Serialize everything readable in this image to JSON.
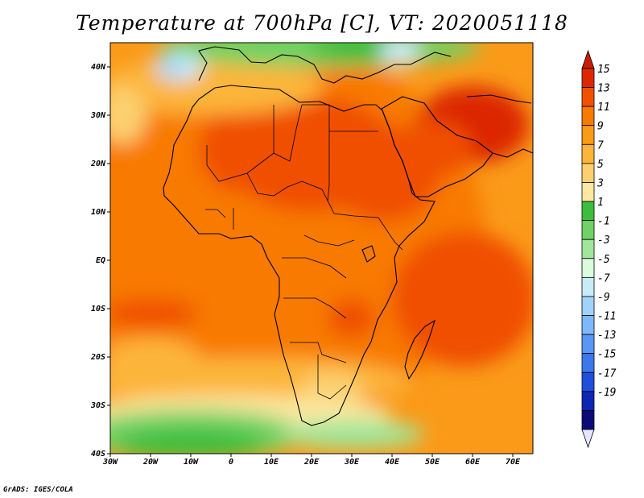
{
  "title": "Temperature at 700hPa [C], VT: 2020051118",
  "credit": "GrADS: IGES/COLA",
  "map": {
    "lon_range": [
      -30,
      75
    ],
    "lat_range": [
      -40,
      45
    ],
    "lon_ticks": [
      {
        "lon": -30,
        "label": "30W"
      },
      {
        "lon": -20,
        "label": "20W"
      },
      {
        "lon": -10,
        "label": "10W"
      },
      {
        "lon": 0,
        "label": "0"
      },
      {
        "lon": 10,
        "label": "10E"
      },
      {
        "lon": 20,
        "label": "20E"
      },
      {
        "lon": 30,
        "label": "30E"
      },
      {
        "lon": 40,
        "label": "40E"
      },
      {
        "lon": 50,
        "label": "50E"
      },
      {
        "lon": 60,
        "label": "60E"
      },
      {
        "lon": 70,
        "label": "70E"
      }
    ],
    "lat_ticks": [
      {
        "lat": 40,
        "label": "40N"
      },
      {
        "lat": 30,
        "label": "30N"
      },
      {
        "lat": 20,
        "label": "20N"
      },
      {
        "lat": 10,
        "label": "10N"
      },
      {
        "lat": 0,
        "label": "EQ"
      },
      {
        "lat": -10,
        "label": "10S"
      },
      {
        "lat": -20,
        "label": "20S"
      },
      {
        "lat": -30,
        "label": "30S"
      },
      {
        "lat": -40,
        "label": "40S"
      }
    ]
  },
  "colorbar": {
    "labels": [
      "15",
      "13",
      "11",
      "9",
      "7",
      "5",
      "3",
      "1",
      "-1",
      "-3",
      "-5",
      "-7",
      "-9",
      "-11",
      "-13",
      "-15",
      "-17",
      "-19"
    ],
    "top_arrow_color": "#c81e00",
    "bottom_arrow_color": "#e6e6ff",
    "colors": [
      "#dc2800",
      "#f05000",
      "#f87a00",
      "#fa9a18",
      "#fcb53a",
      "#fcd070",
      "#fce8a0",
      "#3cbe3c",
      "#6ed264",
      "#a0e69b",
      "#dcfadc",
      "#c8ebf8",
      "#a0d2fa",
      "#7db9fa",
      "#5a96f5",
      "#3c78eb",
      "#1e50dc",
      "#0a28b4",
      "#0a0a78"
    ]
  },
  "temperature_zones": [
    {
      "lon": 8,
      "lat": 5,
      "rx": 55,
      "ry": 40,
      "color": "#f87a00"
    },
    {
      "lon": 20,
      "lat": 22,
      "rx": 22,
      "ry": 12,
      "color": "#f05000"
    },
    {
      "lon": 2,
      "lat": 23,
      "rx": 10,
      "ry": 9,
      "color": "#f05000"
    },
    {
      "lon": 38,
      "lat": 18,
      "rx": 14,
      "ry": 10,
      "color": "#f05000"
    },
    {
      "lon": 60,
      "lat": 28,
      "rx": 14,
      "ry": 8,
      "color": "#dc2800"
    },
    {
      "lon": 50,
      "lat": 23,
      "rx": 10,
      "ry": 6,
      "color": "#f05000"
    },
    {
      "lon": 58,
      "lat": -8,
      "rx": 18,
      "ry": 14,
      "color": "#f05000"
    },
    {
      "lon": 30,
      "lat": -12,
      "rx": 6,
      "ry": 4,
      "color": "#f05000"
    },
    {
      "lon": -20,
      "lat": -11,
      "rx": 12,
      "ry": 3,
      "color": "#f05000"
    },
    {
      "lon": 5,
      "lat": -25,
      "rx": 40,
      "ry": 5,
      "color": "#fcb53a"
    },
    {
      "lon": 25,
      "lat": -27,
      "rx": 8,
      "ry": 4,
      "color": "#fcd070"
    },
    {
      "lon": -5,
      "lat": 36,
      "rx": 28,
      "ry": 6,
      "color": "#fcb53a"
    },
    {
      "lon": -27,
      "lat": 30,
      "rx": 6,
      "ry": 6,
      "color": "#fcd070"
    },
    {
      "lon": -20,
      "lat": -20,
      "rx": 12,
      "ry": 4,
      "color": "#fcb53a"
    },
    {
      "lon": 0,
      "lat": -32,
      "rx": 40,
      "ry": 4,
      "color": "#fce8a0"
    },
    {
      "lon": -10,
      "lat": -36,
      "rx": 28,
      "ry": 5,
      "color": "#6ed264"
    },
    {
      "lon": -10,
      "lat": -38,
      "rx": 18,
      "ry": 3,
      "color": "#3cbe3c"
    },
    {
      "lon": 30,
      "lat": -36,
      "rx": 18,
      "ry": 3,
      "color": "#a0e69b"
    },
    {
      "lon": 22,
      "lat": 44,
      "rx": 40,
      "ry": 4,
      "color": "#6ed264"
    },
    {
      "lon": 32,
      "lat": 44,
      "rx": 12,
      "ry": 3,
      "color": "#3cbe3c"
    },
    {
      "lon": -13,
      "lat": 40,
      "rx": 6,
      "ry": 3,
      "color": "#c8ebf8"
    },
    {
      "lon": -15,
      "lat": 40,
      "rx": 3,
      "ry": 2,
      "color": "#a0d2fa"
    },
    {
      "lon": 42,
      "lat": 43,
      "rx": 5,
      "ry": 3,
      "color": "#c8ebf8"
    }
  ]
}
